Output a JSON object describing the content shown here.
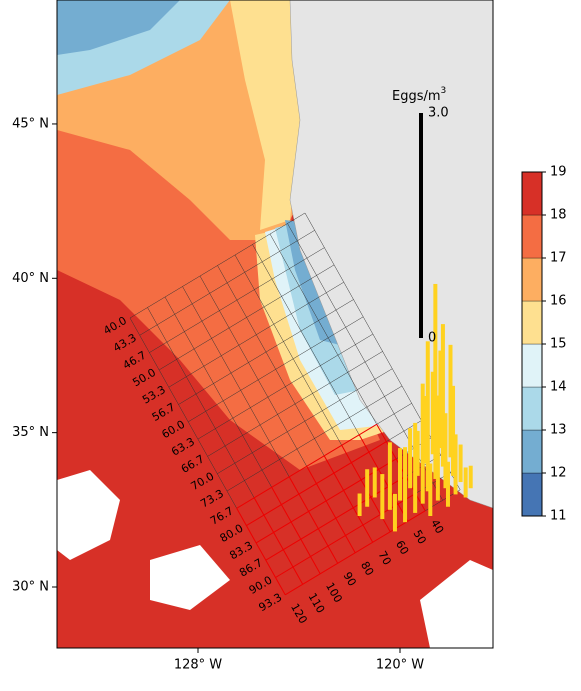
{
  "map": {
    "lon_ticks": [
      {
        "value": -128,
        "label": "128° W"
      },
      {
        "value": -120,
        "label": "120° W"
      }
    ],
    "lat_ticks": [
      {
        "value": 45,
        "label": "45° N"
      },
      {
        "value": 40,
        "label": "40° N"
      },
      {
        "value": 35,
        "label": "35° N"
      },
      {
        "value": 30,
        "label": "30° N"
      }
    ],
    "grid_lines": [
      "40.0",
      "43.3",
      "46.7",
      "50.0",
      "53.3",
      "56.7",
      "60.0",
      "63.3",
      "66.7",
      "70.0",
      "73.3",
      "76.7",
      "80.0",
      "83.3",
      "86.7",
      "90.0",
      "93.3"
    ],
    "grid_stations": [
      "120",
      "110",
      "100",
      "90",
      "80",
      "70",
      "60",
      "50",
      "40"
    ],
    "scale": {
      "title": "Eggs/m",
      "title_sup": "3",
      "ticks": [
        0,
        {
          "value": 3,
          "label": "3.0"
        }
      ],
      "color": "#000000"
    },
    "eggs": {
      "color": "#ffd21f",
      "points": [
        {
          "lon": -121.6,
          "lat": 32.3,
          "value": 0.3
        },
        {
          "lon": -121.3,
          "lat": 32.6,
          "value": 0.5
        },
        {
          "lon": -121.0,
          "lat": 32.9,
          "value": 0.4
        },
        {
          "lon": -120.7,
          "lat": 32.2,
          "value": 0.6
        },
        {
          "lon": -120.4,
          "lat": 32.5,
          "value": 0.9
        },
        {
          "lon": -120.2,
          "lat": 31.8,
          "value": 0.5
        },
        {
          "lon": -120.0,
          "lat": 32.8,
          "value": 0.7
        },
        {
          "lon": -119.8,
          "lat": 32.1,
          "value": 1.0
        },
        {
          "lon": -119.6,
          "lat": 33.2,
          "value": 0.8
        },
        {
          "lon": -119.4,
          "lat": 32.4,
          "value": 1.2
        },
        {
          "lon": -119.3,
          "lat": 33.6,
          "value": 0.6
        },
        {
          "lon": -119.1,
          "lat": 32.7,
          "value": 1.6
        },
        {
          "lon": -119.0,
          "lat": 34.0,
          "value": 0.9
        },
        {
          "lon": -118.9,
          "lat": 33.1,
          "value": 2.0
        },
        {
          "lon": -118.8,
          "lat": 32.3,
          "value": 0.7
        },
        {
          "lon": -118.7,
          "lat": 34.3,
          "value": 1.1
        },
        {
          "lon": -118.6,
          "lat": 33.5,
          "value": 2.6
        },
        {
          "lon": -118.5,
          "lat": 32.8,
          "value": 1.4
        },
        {
          "lon": -118.4,
          "lat": 34.5,
          "value": 1.3
        },
        {
          "lon": -118.3,
          "lat": 33.9,
          "value": 1.9
        },
        {
          "lon": -118.2,
          "lat": 33.2,
          "value": 1.0
        },
        {
          "lon": -118.1,
          "lat": 32.6,
          "value": 0.6
        },
        {
          "lon": -118.0,
          "lat": 34.2,
          "value": 1.5
        },
        {
          "lon": -117.9,
          "lat": 33.6,
          "value": 1.2
        },
        {
          "lon": -117.8,
          "lat": 33.0,
          "value": 0.8
        },
        {
          "lon": -117.6,
          "lat": 33.4,
          "value": 0.5
        },
        {
          "lon": -117.4,
          "lat": 32.9,
          "value": 0.4
        },
        {
          "lon": -117.2,
          "lat": 33.2,
          "value": 0.3
        }
      ]
    },
    "colorbar": {
      "ticks": [
        11,
        12,
        13,
        14,
        15,
        16,
        17,
        18,
        19
      ],
      "colors": [
        "#4575b4",
        "#74add1",
        "#abd9e9",
        "#e0f3f8",
        "#fee090",
        "#fdae61",
        "#f46d43",
        "#d73027"
      ]
    }
  }
}
